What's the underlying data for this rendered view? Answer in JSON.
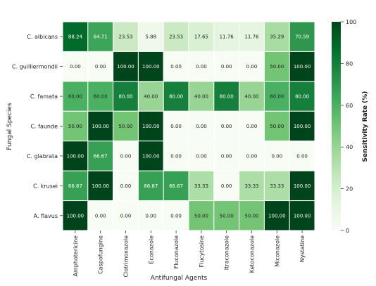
{
  "chart_data": {
    "type": "heatmap",
    "title": "",
    "xlabel": "Antifungal Agents",
    "ylabel": "Fungal Species",
    "colorbar_label": "Sensitivity Rate (%)",
    "colorbar_range": [
      0,
      100
    ],
    "colorbar_ticks": [
      "0",
      "20",
      "40",
      "60",
      "80",
      "100"
    ],
    "x_categories": [
      "Amphotericine",
      "Caspofungine",
      "Clotrimoxazole",
      "Econazole",
      "Fluconazole",
      "Flucytosine",
      "Itraconazole",
      "Ketoconazole",
      "Miconazole",
      "Nystatine"
    ],
    "y_categories": [
      "C. albicans",
      "C. guilliermondii",
      "C. famata",
      "C. faunde",
      "C. glabrata",
      "C. krusei",
      "A. flavus"
    ],
    "values": [
      [
        88.24,
        64.71,
        23.53,
        5.88,
        23.53,
        17.65,
        11.76,
        11.76,
        35.29,
        70.59
      ],
      [
        0.0,
        0.0,
        100.0,
        100.0,
        0.0,
        0.0,
        0.0,
        0.0,
        50.0,
        100.0
      ],
      [
        60.0,
        60.0,
        80.0,
        40.0,
        80.0,
        40.0,
        80.0,
        40.0,
        60.0,
        80.0
      ],
      [
        50.0,
        100.0,
        50.0,
        100.0,
        0.0,
        0.0,
        0.0,
        0.0,
        50.0,
        100.0
      ],
      [
        100.0,
        66.67,
        0.0,
        100.0,
        0.0,
        0.0,
        0.0,
        0.0,
        0.0,
        0.0
      ],
      [
        66.67,
        100.0,
        0.0,
        66.67,
        66.67,
        33.33,
        0.0,
        33.33,
        33.33,
        100.0
      ],
      [
        100.0,
        0.0,
        0.0,
        0.0,
        0.0,
        50.0,
        50.0,
        50.0,
        100.0,
        100.0
      ]
    ],
    "colormap": "Greens",
    "colormap_stops": [
      "#f7fcf5",
      "#e5f5e0",
      "#c7e9c0",
      "#a1d99b",
      "#74c476",
      "#41ab5d",
      "#238b45",
      "#006d2c",
      "#00441b"
    ],
    "grid": false,
    "legend": "colorbar-right"
  }
}
